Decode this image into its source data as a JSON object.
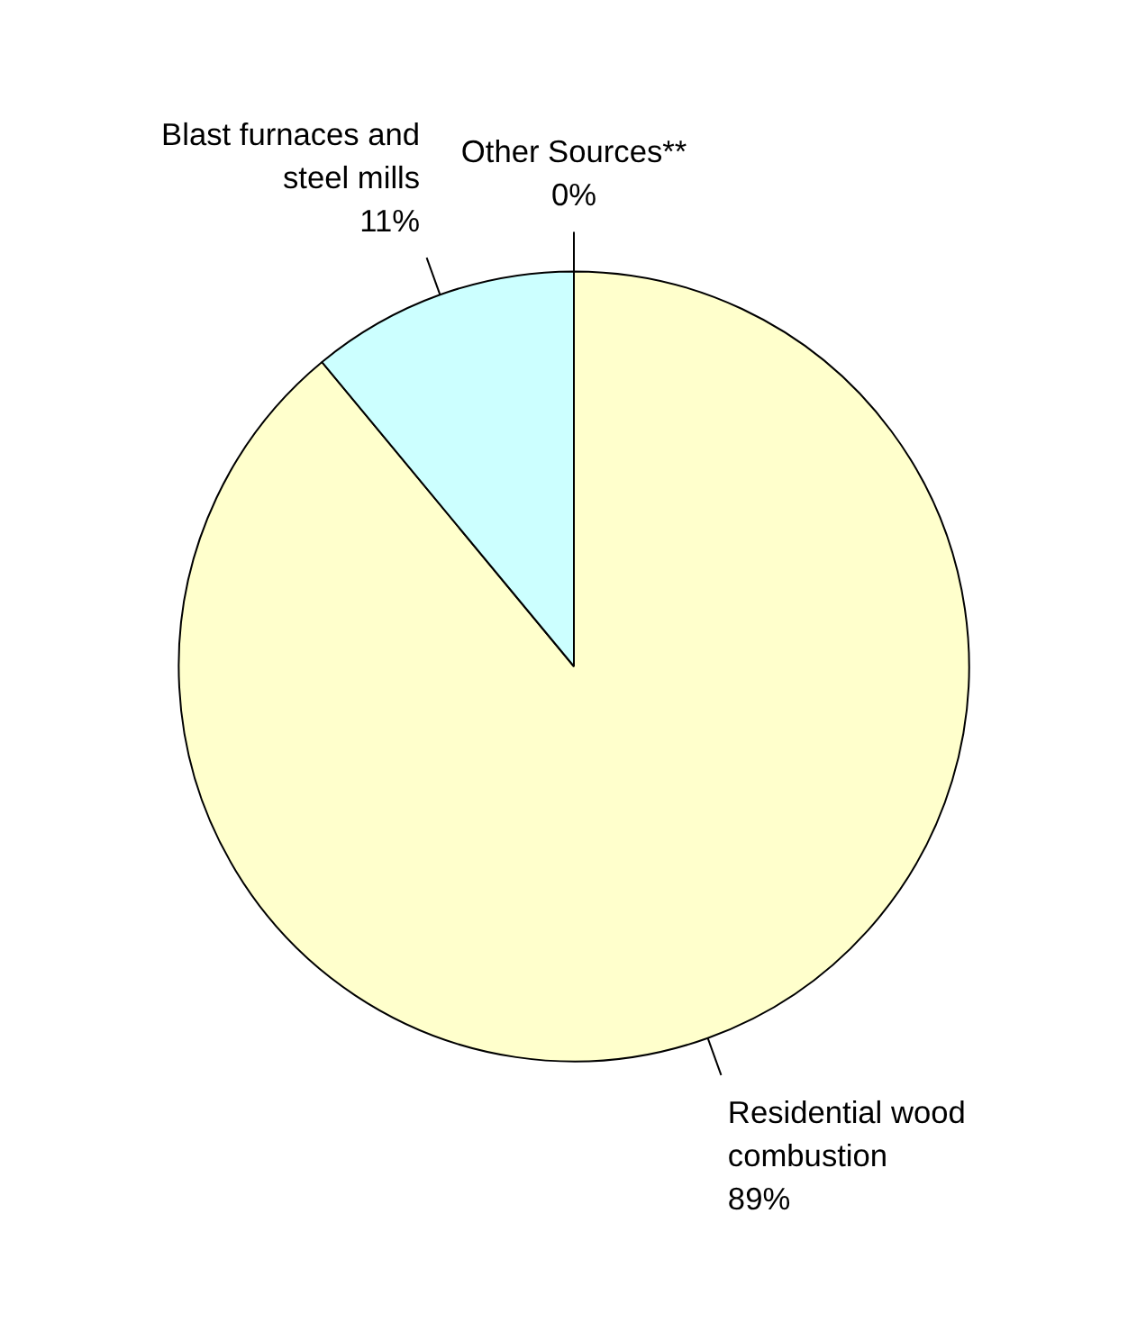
{
  "chart_data": {
    "type": "pie",
    "categories": [
      "Residential wood\ncombustion",
      "Blast furnaces and\nsteel mills",
      "Other Sources**"
    ],
    "values": [
      89,
      11,
      0
    ],
    "colors": [
      "#ffffcc",
      "#ccffff",
      "#000000"
    ],
    "value_labels": [
      "89%",
      "11%",
      "0%"
    ]
  }
}
